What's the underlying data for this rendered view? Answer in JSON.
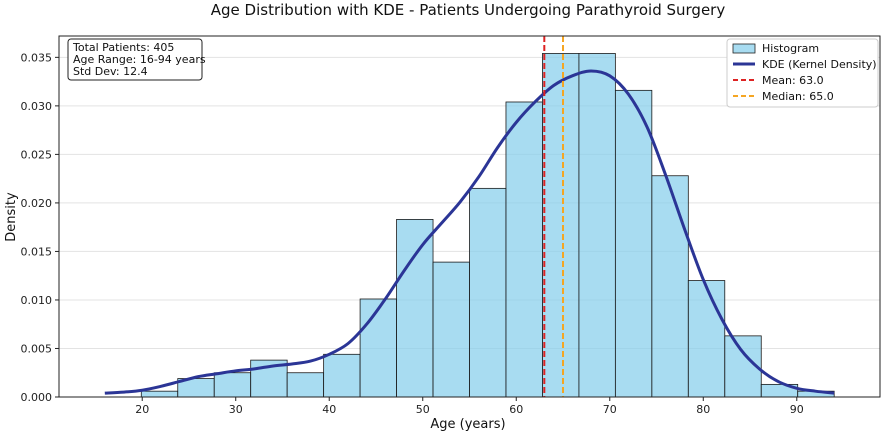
{
  "chart_data": {
    "type": "bar",
    "title": "Age Distribution with KDE - Patients Undergoing Parathyroid Surgery",
    "xlabel": "Age (years)",
    "ylabel": "Density",
    "xlim": [
      11.1,
      98.9
    ],
    "ylim": [
      0,
      0.0372
    ],
    "x_ticks": [
      20,
      30,
      40,
      50,
      60,
      70,
      80,
      90
    ],
    "y_ticks": [
      0.0,
      0.005,
      0.01,
      0.015,
      0.02,
      0.025,
      0.03,
      0.035
    ],
    "grid": "horizontal",
    "legend_position": "top-right",
    "histogram": {
      "name": "Histogram",
      "color": "#87CEEB",
      "bins": [
        {
          "start": 16.0,
          "end": 19.9,
          "density": 0.0
        },
        {
          "start": 19.9,
          "end": 23.8,
          "density": 0.0006
        },
        {
          "start": 23.8,
          "end": 27.7,
          "density": 0.0019
        },
        {
          "start": 27.7,
          "end": 31.6,
          "density": 0.0025
        },
        {
          "start": 31.6,
          "end": 35.5,
          "density": 0.0038
        },
        {
          "start": 35.5,
          "end": 39.4,
          "density": 0.0025
        },
        {
          "start": 39.4,
          "end": 43.3,
          "density": 0.0044
        },
        {
          "start": 43.3,
          "end": 47.2,
          "density": 0.0101
        },
        {
          "start": 47.2,
          "end": 51.1,
          "density": 0.0183
        },
        {
          "start": 51.1,
          "end": 55.0,
          "density": 0.0139
        },
        {
          "start": 55.0,
          "end": 58.9,
          "density": 0.0215
        },
        {
          "start": 58.9,
          "end": 62.8,
          "density": 0.0304
        },
        {
          "start": 62.8,
          "end": 66.7,
          "density": 0.0354
        },
        {
          "start": 66.7,
          "end": 70.6,
          "density": 0.0354
        },
        {
          "start": 70.6,
          "end": 74.5,
          "density": 0.0316
        },
        {
          "start": 74.5,
          "end": 78.4,
          "density": 0.0228
        },
        {
          "start": 78.4,
          "end": 82.3,
          "density": 0.012
        },
        {
          "start": 82.3,
          "end": 86.2,
          "density": 0.0063
        },
        {
          "start": 86.2,
          "end": 90.1,
          "density": 0.0013
        },
        {
          "start": 90.1,
          "end": 94.0,
          "density": 0.0006
        }
      ]
    },
    "kde": {
      "name": "KDE (Kernel Density)",
      "color": "#2B3596",
      "x": [
        16,
        18,
        20,
        22,
        24,
        26,
        28,
        30,
        32,
        34,
        36,
        38,
        40,
        42,
        44,
        46,
        48,
        50,
        52,
        54,
        56,
        58,
        60,
        62,
        64,
        66,
        68,
        70,
        72,
        74,
        76,
        78,
        80,
        82,
        84,
        86,
        88,
        90,
        92,
        94
      ],
      "y": [
        0.0004,
        0.0005,
        0.0007,
        0.0011,
        0.0016,
        0.0021,
        0.0024,
        0.0027,
        0.0029,
        0.0032,
        0.0034,
        0.0037,
        0.0044,
        0.0055,
        0.0075,
        0.0101,
        0.013,
        0.0157,
        0.0179,
        0.0201,
        0.0227,
        0.0257,
        0.0283,
        0.0304,
        0.0321,
        0.0331,
        0.0336,
        0.0331,
        0.0312,
        0.0278,
        0.0228,
        0.0173,
        0.0121,
        0.008,
        0.0049,
        0.0029,
        0.0016,
        0.0009,
        0.0006,
        0.0004
      ]
    },
    "mean": {
      "label": "Mean: 63.0",
      "value": 63.0,
      "color": "#DD2222"
    },
    "median": {
      "label": "Median: 65.0",
      "value": 65.0,
      "color": "#F5A623"
    },
    "stats_box": [
      "Total Patients: 405",
      "Age Range: 16-94 years",
      "Std Dev: 12.4"
    ]
  }
}
